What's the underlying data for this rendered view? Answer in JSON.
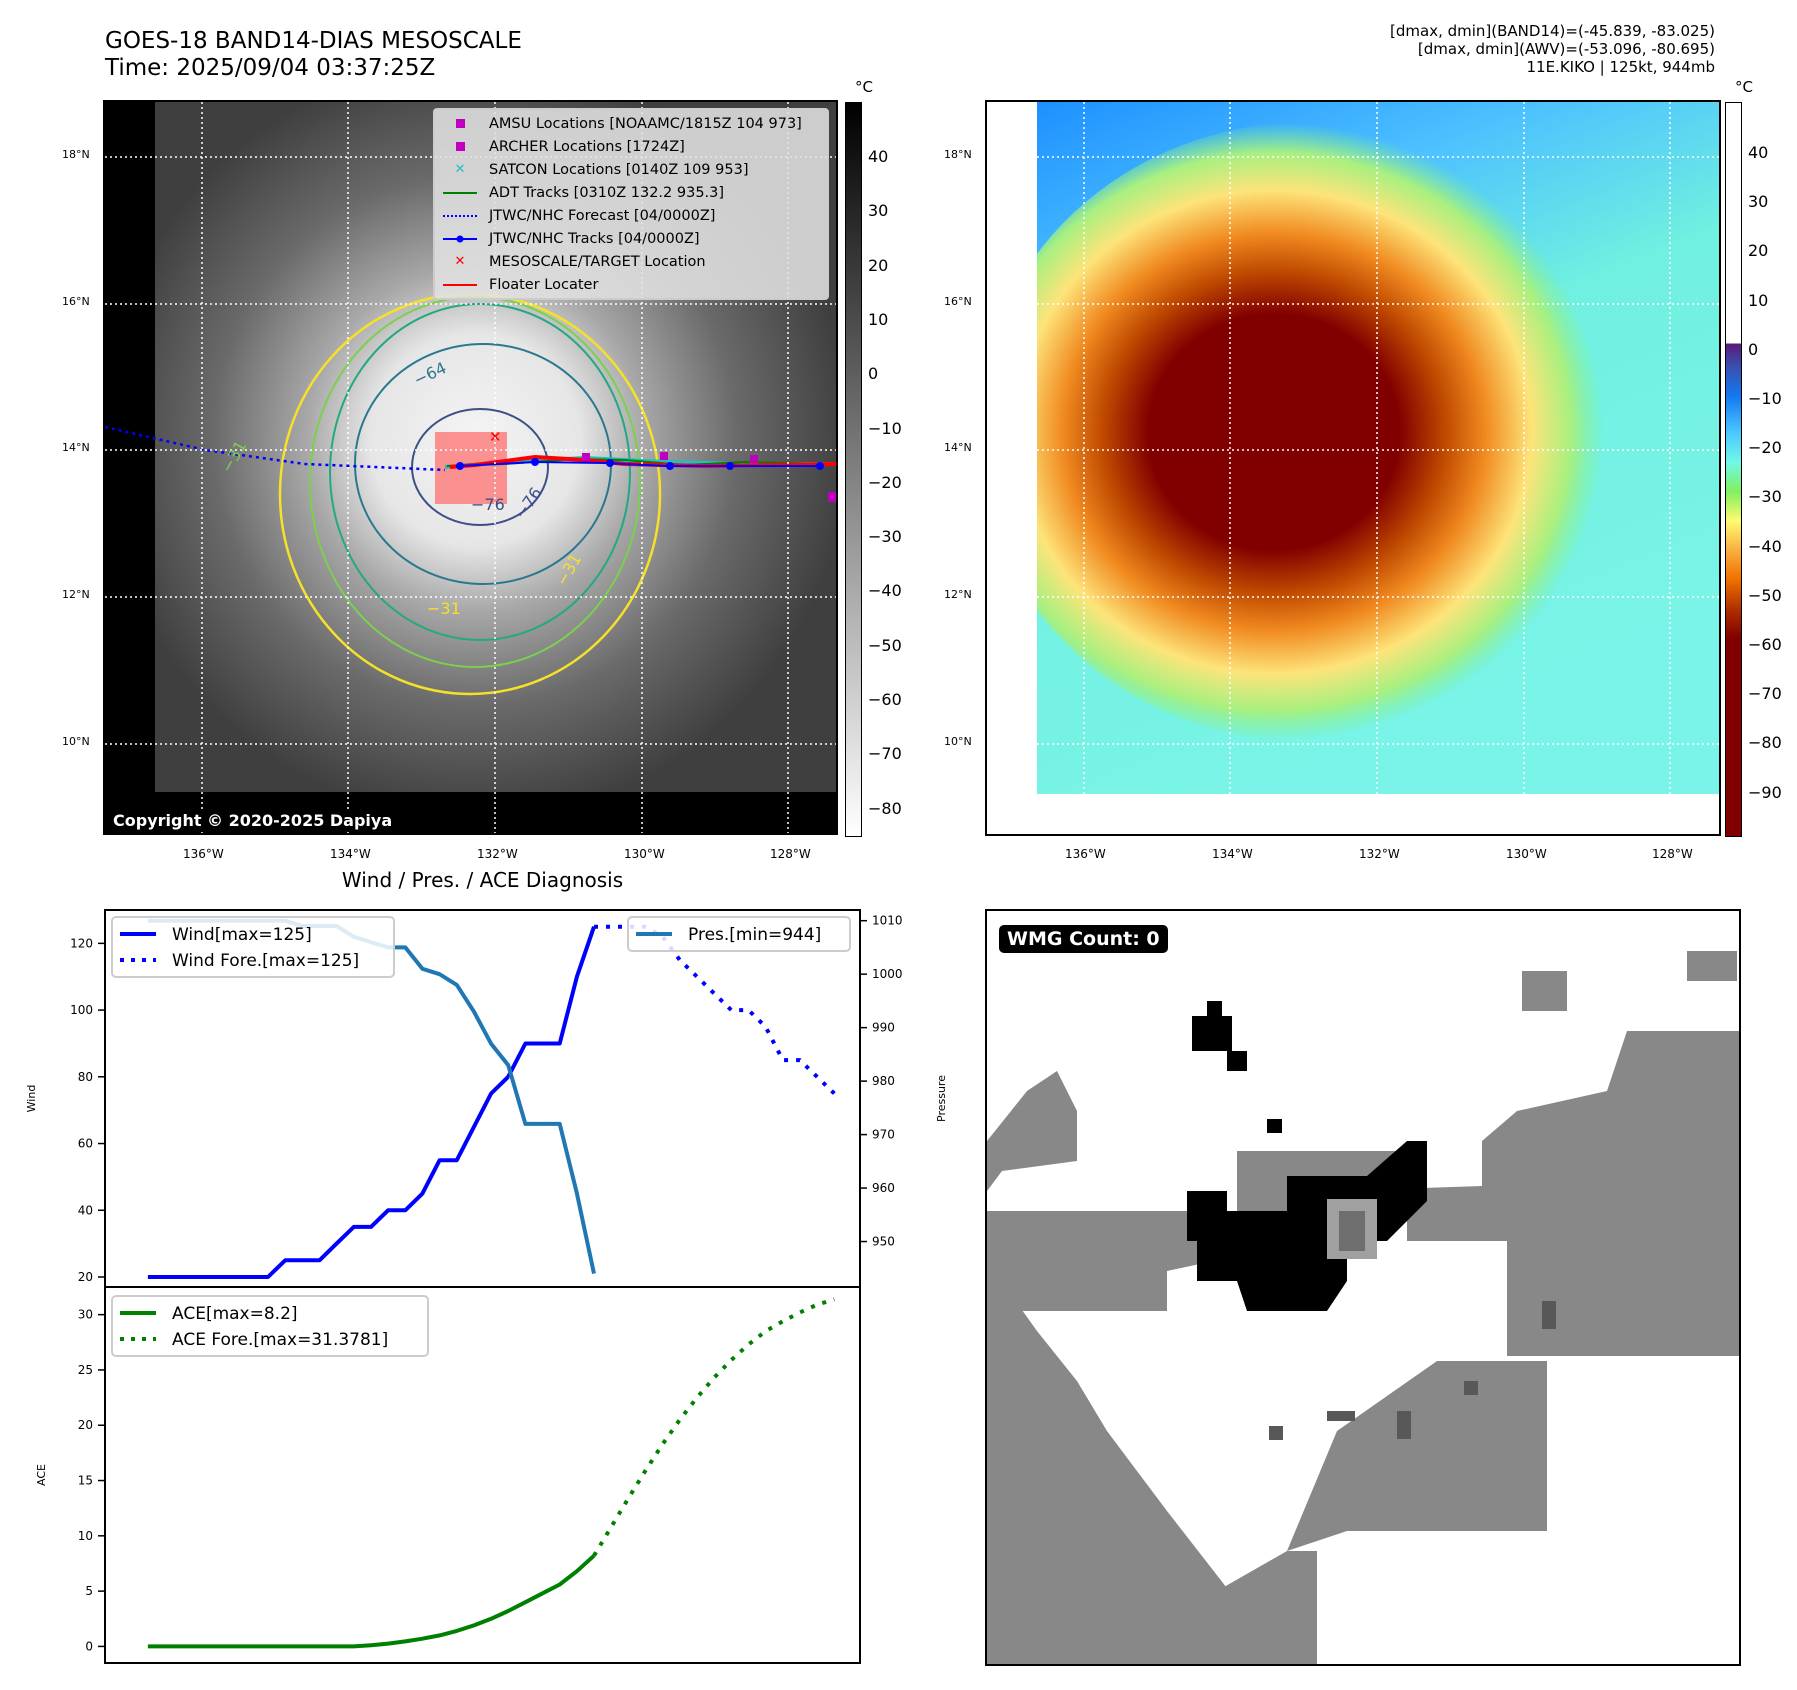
{
  "header": {
    "title_line1": "GOES-18 BAND14-DIAS MESOSCALE",
    "title_line2": "Time: 2025/09/04 03:37:25Z",
    "info_line1": "[dmax, dmin](BAND14)=(-45.839, -83.025)",
    "info_line2": "[dmax, dmin](AWV)=(-53.096, -80.695)",
    "info_line3": "11E.KIKO | 125kt, 944mb"
  },
  "maps": {
    "lat_ticks": [
      "18°N",
      "16°N",
      "14°N",
      "12°N",
      "10°N"
    ],
    "lon_ticks": [
      "136°W",
      "134°W",
      "132°W",
      "130°W",
      "128°W"
    ],
    "ir_map": {
      "colorbar_unit": "°C",
      "colorbar_ticks": [
        "40",
        "30",
        "20",
        "10",
        "0",
        "−10",
        "−20",
        "−30",
        "−40",
        "−50",
        "−60",
        "−70",
        "−80"
      ],
      "contour_labels": [
        "−64",
        "−76",
        "−76",
        "−31",
        "−31",
        "−31"
      ],
      "copyright": "Copyright © 2020-2025 Dapiya",
      "legend": [
        {
          "label": "AMSU Locations [NOAAMC/1815Z 104 973]",
          "symbol": "square",
          "color": "#c000c0"
        },
        {
          "label": "ARCHER Locations [1724Z]",
          "symbol": "square",
          "color": "#c000c0"
        },
        {
          "label": "SATCON Locations [0140Z 109 953]",
          "symbol": "x",
          "color": "#20c0c0"
        },
        {
          "label": "ADT Tracks [0310Z 132.2 935.3]",
          "symbol": "line",
          "color": "#008000"
        },
        {
          "label": "JTWC/NHC Forecast [04/0000Z]",
          "symbol": "dotted",
          "color": "#0000ff"
        },
        {
          "label": "JTWC/NHC Tracks [04/0000Z]",
          "symbol": "line-dot",
          "color": "#0000ff"
        },
        {
          "label": "MESOSCALE/TARGET Location",
          "symbol": "x",
          "color": "#ff0000"
        },
        {
          "label": "Floater Locater",
          "symbol": "line",
          "color": "#ff0000"
        }
      ]
    },
    "awv_map": {
      "colorbar_unit": "°C",
      "colorbar_ticks": [
        "40",
        "30",
        "20",
        "10",
        "0",
        "−10",
        "−20",
        "−30",
        "−40",
        "−50",
        "−60",
        "−70",
        "−80",
        "−90"
      ]
    }
  },
  "wmg": {
    "label": "WMG Count: 0"
  },
  "chart_data": [
    {
      "type": "line",
      "title": "Wind / Pres. / ACE Diagnosis",
      "ylabel": "Wind",
      "ylabel_right": "Pressure",
      "ylim": [
        17,
        130
      ],
      "ylim_right": [
        941.5,
        1012
      ],
      "yticks": [
        20,
        40,
        60,
        80,
        100,
        120
      ],
      "yticks_right": [
        950,
        960,
        970,
        980,
        990,
        1000,
        1010
      ],
      "x": [
        0,
        1,
        2,
        3,
        4,
        5,
        6,
        7,
        8,
        9,
        10,
        11,
        12,
        13,
        14,
        15,
        16,
        17,
        18,
        19,
        20,
        21,
        22,
        23,
        24,
        25,
        26,
        27,
        28,
        29,
        30,
        31,
        32,
        33,
        34,
        35,
        36,
        37,
        38,
        39,
        40
      ],
      "xlim": [
        -2.5,
        41.5
      ],
      "series": [
        {
          "name": "Wind[max=125]",
          "axis": "left",
          "style": "solid",
          "color": "#0000ff",
          "x": [
            0,
            1,
            2,
            3,
            4,
            5,
            6,
            7,
            8,
            9,
            10,
            11,
            12,
            13,
            14,
            15,
            16,
            17,
            18,
            19,
            20,
            21
          ],
          "values": [
            20,
            20,
            20,
            20,
            20,
            20,
            20,
            20,
            25,
            25,
            25,
            30,
            35,
            35,
            40,
            40,
            45,
            55,
            55,
            65,
            75,
            80
          ]
        },
        {
          "name": "Wind[max=125] (cont.)",
          "axis": "left",
          "style": "solid",
          "color": "#0000ff",
          "x": [
            21,
            22,
            23,
            24,
            25,
            26
          ],
          "values": [
            80,
            90,
            90,
            90,
            110,
            125
          ]
        },
        {
          "name": "Wind Fore.[max=125]",
          "axis": "left",
          "style": "dotted",
          "color": "#0000ff",
          "x": [
            26,
            27,
            28,
            29,
            30,
            31,
            32,
            33,
            34,
            35,
            36,
            37,
            38,
            39,
            40
          ],
          "values": [
            125,
            125,
            125,
            125,
            122,
            115,
            110,
            105,
            100,
            100,
            95,
            85,
            85,
            80,
            75
          ]
        },
        {
          "name": "Pres.[min=944]",
          "axis": "right",
          "style": "solid",
          "color": "#1f77b4",
          "x": [
            0,
            1,
            2,
            3,
            4,
            5,
            6,
            7,
            8,
            9,
            10,
            11,
            12,
            13,
            14,
            15,
            16,
            17,
            18,
            19,
            20,
            21,
            22,
            23,
            24,
            25,
            26
          ],
          "values": [
            1010,
            1010,
            1010,
            1010,
            1010,
            1010,
            1010,
            1010,
            1010,
            1009,
            1009,
            1009,
            1007,
            1006,
            1005,
            1005,
            1001,
            1000,
            998,
            993,
            987,
            983,
            972,
            972,
            972,
            959,
            944
          ]
        }
      ],
      "legend": [
        {
          "label": "Wind[max=125]",
          "style": "solid",
          "color": "#0000ff",
          "placement": "top-left"
        },
        {
          "label": "Wind Fore.[max=125]",
          "style": "dotted",
          "color": "#0000ff",
          "placement": "top-left"
        },
        {
          "label": "Pres.[min=944]",
          "style": "solid",
          "color": "#1f77b4",
          "placement": "top-right"
        }
      ]
    },
    {
      "type": "line",
      "ylabel": "ACE",
      "ylim": [
        -1.5,
        32.5
      ],
      "yticks": [
        0,
        5,
        10,
        15,
        20,
        25,
        30
      ],
      "xlim": [
        -2.5,
        41.5
      ],
      "series": [
        {
          "name": "ACE[max=8.2]",
          "style": "solid",
          "color": "#008000",
          "x": [
            0,
            1,
            2,
            3,
            4,
            5,
            6,
            7,
            8,
            9,
            10,
            11,
            12,
            13,
            14,
            15,
            16,
            17,
            18,
            19,
            20,
            21,
            22,
            23,
            24,
            25,
            26
          ],
          "values": [
            0,
            0,
            0,
            0,
            0,
            0,
            0,
            0,
            0,
            0,
            0,
            0,
            0,
            0.1,
            0.25,
            0.45,
            0.7,
            1.0,
            1.4,
            1.9,
            2.5,
            3.2,
            4.0,
            4.8,
            5.6,
            6.8,
            8.2
          ]
        },
        {
          "name": "ACE Fore.[max=31.3781]",
          "style": "dotted",
          "color": "#008000",
          "x": [
            26,
            27,
            28,
            29,
            30,
            31,
            32,
            33,
            34,
            35,
            36,
            37,
            38,
            39,
            40
          ],
          "values": [
            8.2,
            10.8,
            13.4,
            15.9,
            18.3,
            20.5,
            22.5,
            24.3,
            25.9,
            27.3,
            28.5,
            29.4,
            30.2,
            30.9,
            31.38
          ]
        }
      ],
      "legend": [
        {
          "label": "ACE[max=8.2]",
          "style": "solid",
          "color": "#008000",
          "placement": "top-left"
        },
        {
          "label": "ACE Fore.[max=31.3781]",
          "style": "dotted",
          "color": "#008000",
          "placement": "top-left"
        }
      ]
    }
  ]
}
